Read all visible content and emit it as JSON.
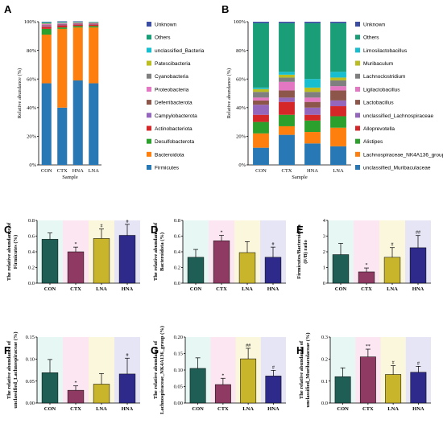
{
  "chart_data": [
    {
      "panel": "A",
      "type": "bar",
      "stacked": true,
      "categories": [
        "CON",
        "CTX",
        "HNA",
        "LNA"
      ],
      "xlabel": "Sample",
      "ylabel": "Relative abundance (%)",
      "ylim": [
        0,
        100
      ],
      "yticks": [
        "0%",
        "20%",
        "40%",
        "60%",
        "80%",
        "100%"
      ],
      "legend_placement": "right",
      "series": [
        {
          "name": "Firmicutes",
          "color": "#2878B5",
          "values": [
            57,
            40,
            59,
            57
          ]
        },
        {
          "name": "Bacteroidota",
          "color": "#FF7F0E",
          "values": [
            34,
            55,
            37,
            39
          ]
        },
        {
          "name": "Desulfobacterota",
          "color": "#2CA02C",
          "values": [
            4,
            1,
            1,
            1
          ]
        },
        {
          "name": "Actinobacteriota",
          "color": "#D62728",
          "values": [
            1.5,
            1.5,
            1,
            1
          ]
        },
        {
          "name": "Campylobacterota",
          "color": "#9467BD",
          "values": [
            0.5,
            0.5,
            0.3,
            0.3
          ]
        },
        {
          "name": "Deferribacterota",
          "color": "#8C564B",
          "values": [
            0.5,
            0.3,
            0.3,
            0.3
          ]
        },
        {
          "name": "Proteobacteria",
          "color": "#E377C2",
          "values": [
            0.8,
            0.5,
            0.5,
            0.4
          ]
        },
        {
          "name": "Cyanobacteria",
          "color": "#7F7F7F",
          "values": [
            0.4,
            0.3,
            0.3,
            0.3
          ]
        },
        {
          "name": "Patescibacteria",
          "color": "#BCBD22",
          "values": [
            0.3,
            0.2,
            0.2,
            0.2
          ]
        },
        {
          "name": "unclassified_Bacteria",
          "color": "#17BECF",
          "values": [
            0.3,
            0.3,
            0.2,
            0.2
          ]
        },
        {
          "name": "Others",
          "color": "#1A9E77",
          "values": [
            0.4,
            0.3,
            0.2,
            0.2
          ]
        },
        {
          "name": "Unknown",
          "color": "#3B4EA3",
          "values": [
            0.3,
            0.4,
            0.3,
            0.1
          ]
        }
      ]
    },
    {
      "panel": "B",
      "type": "bar",
      "stacked": true,
      "categories": [
        "CON",
        "CTX",
        "HNA",
        "LNA"
      ],
      "xlabel": "Sample",
      "ylabel": "Relative abundance (%)",
      "ylim": [
        0,
        100
      ],
      "yticks": [
        "0%",
        "20%",
        "40%",
        "60%",
        "80%",
        "100%"
      ],
      "legend_placement": "right",
      "series": [
        {
          "name": "unclassified_Muribaculaceae",
          "color": "#2878B5",
          "values": [
            12,
            21,
            15,
            13
          ]
        },
        {
          "name": "Lachnospiraceae_NK4A136_group",
          "color": "#FF7F0E",
          "values": [
            10,
            6,
            8,
            13
          ]
        },
        {
          "name": "Alistipes",
          "color": "#2CA02C",
          "values": [
            8,
            8,
            8,
            8
          ]
        },
        {
          "name": "Alloprevotella",
          "color": "#D62728",
          "values": [
            5,
            9,
            4,
            7
          ]
        },
        {
          "name": "unclassified_Lachnospiraceae",
          "color": "#9467BD",
          "values": [
            7,
            3,
            5,
            4
          ]
        },
        {
          "name": "Lactobacillus",
          "color": "#8C564B",
          "values": [
            3,
            5,
            4,
            7
          ]
        },
        {
          "name": "Ligilactobacillus",
          "color": "#E377C2",
          "values": [
            2,
            6,
            3,
            3
          ]
        },
        {
          "name": "Lachnoclostridium",
          "color": "#7F7F7F",
          "values": [
            4,
            3,
            4,
            4
          ]
        },
        {
          "name": "Muribaculum",
          "color": "#BCBD22",
          "values": [
            2,
            2,
            3,
            2
          ]
        },
        {
          "name": "Limosilactobacillus",
          "color": "#17BECF",
          "values": [
            1,
            2,
            6,
            4
          ]
        },
        {
          "name": "Others",
          "color": "#1A9E77",
          "values": [
            45,
            34,
            39,
            34
          ]
        },
        {
          "name": "Unknown",
          "color": "#3B4EA3",
          "values": [
            1,
            1,
            1,
            1
          ]
        }
      ]
    },
    {
      "panel": "C",
      "type": "bar",
      "categories": [
        "CON",
        "CTX",
        "LNA",
        "HNA"
      ],
      "ylabel": "The relative abundance of Firmicutes (%)",
      "ylim": [
        0,
        0.8
      ],
      "yticks": [
        "0.0",
        "0.2",
        "0.4",
        "0.6",
        "0.8"
      ],
      "values": [
        0.56,
        0.4,
        0.57,
        0.61
      ],
      "errors": [
        0.08,
        0.06,
        0.12,
        0.14
      ],
      "significance": [
        "",
        "*",
        "#",
        "#"
      ]
    },
    {
      "panel": "D",
      "type": "bar",
      "categories": [
        "CON",
        "CTX",
        "LNA",
        "HNA"
      ],
      "ylabel": "The relative abundance of Bacteroidota (%)",
      "ylim": [
        0,
        0.8
      ],
      "yticks": [
        "0.0",
        "0.2",
        "0.4",
        "0.6",
        "0.8"
      ],
      "values": [
        0.33,
        0.54,
        0.39,
        0.33
      ],
      "errors": [
        0.1,
        0.07,
        0.14,
        0.13
      ],
      "significance": [
        "",
        "*",
        "",
        "#"
      ]
    },
    {
      "panel": "E",
      "type": "bar",
      "categories": [
        "CON",
        "CTX",
        "LNA",
        "HNA"
      ],
      "ylabel": "Firmicutes/Bacteroidota (F/B) ratio",
      "ylim": [
        0,
        4
      ],
      "yticks": [
        "0",
        "1",
        "2",
        "3",
        "4"
      ],
      "values": [
        1.82,
        0.72,
        1.65,
        2.26
      ],
      "errors": [
        0.72,
        0.25,
        0.62,
        0.78
      ],
      "significance": [
        "",
        "*",
        "#",
        "##"
      ]
    },
    {
      "panel": "F",
      "type": "bar",
      "categories": [
        "CON",
        "CTX",
        "LNA",
        "HNA"
      ],
      "ylabel": "The relative abundance of unclassified_Lachnospiraceae (%)",
      "ylim": [
        0,
        0.15
      ],
      "yticks": [
        "0.00",
        "0.05",
        "0.10",
        "0.15"
      ],
      "values": [
        0.069,
        0.029,
        0.043,
        0.066
      ],
      "errors": [
        0.03,
        0.01,
        0.024,
        0.036
      ],
      "significance": [
        "",
        "*",
        "",
        "#"
      ]
    },
    {
      "panel": "G",
      "type": "bar",
      "categories": [
        "CON",
        "CTX",
        "LNA",
        "HNA"
      ],
      "ylabel": "The relative abundance of Lachnospiraceae_NK4A136_group (%)",
      "ylim": [
        0,
        0.2
      ],
      "yticks": [
        "0.00",
        "0.05",
        "0.10",
        "0.15",
        "0.20"
      ],
      "values": [
        0.105,
        0.056,
        0.134,
        0.082
      ],
      "errors": [
        0.032,
        0.019,
        0.032,
        0.017
      ],
      "significance": [
        "",
        "*",
        "##",
        "#"
      ]
    },
    {
      "panel": "H",
      "type": "bar",
      "categories": [
        "CON",
        "CTX",
        "LNA",
        "HNA"
      ],
      "ylabel": "The relative abundance of unclassified_Muribaculaceae (%)",
      "ylim": [
        0,
        0.3
      ],
      "yticks": [
        "0.0",
        "0.1",
        "0.2",
        "0.3"
      ],
      "values": [
        0.12,
        0.21,
        0.13,
        0.14
      ],
      "errors": [
        0.04,
        0.035,
        0.04,
        0.027
      ],
      "significance": [
        "",
        "**",
        "#",
        "#"
      ]
    }
  ],
  "bar_colors": [
    "#1E5E55",
    "#8E3A62",
    "#C9B52C",
    "#2E2A8C"
  ],
  "bar_tints": [
    "#E6F7F4",
    "#FBE6F1",
    "#FBF7DD",
    "#E5E5F6"
  ]
}
